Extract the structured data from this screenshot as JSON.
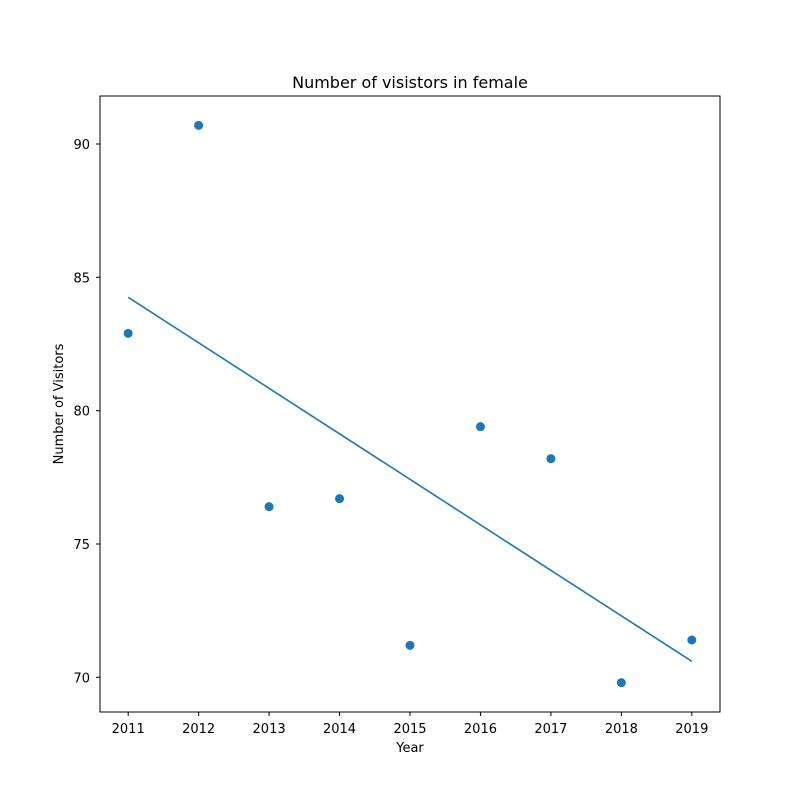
{
  "chart_data": {
    "type": "scatter",
    "title": "Number of visistors in female",
    "xlabel": "Year",
    "ylabel": "Number of Visitors",
    "xlim": [
      2010.6,
      2019.4
    ],
    "ylim": [
      68.7,
      91.8
    ],
    "xticks": [
      2011,
      2012,
      2013,
      2014,
      2015,
      2016,
      2017,
      2018,
      2019
    ],
    "yticks": [
      70,
      75,
      80,
      85,
      90
    ],
    "grid": false,
    "colors": {
      "series": "#1f77b4"
    },
    "series": [
      {
        "kind": "scatter",
        "x": [
          2011,
          2012,
          2013,
          2014,
          2015,
          2016,
          2017,
          2018,
          2019
        ],
        "y": [
          82.9,
          90.7,
          76.4,
          76.7,
          71.2,
          79.4,
          78.2,
          69.8,
          71.4
        ]
      },
      {
        "kind": "line",
        "x": [
          2011,
          2019
        ],
        "y": [
          84.25,
          70.6
        ]
      }
    ]
  }
}
